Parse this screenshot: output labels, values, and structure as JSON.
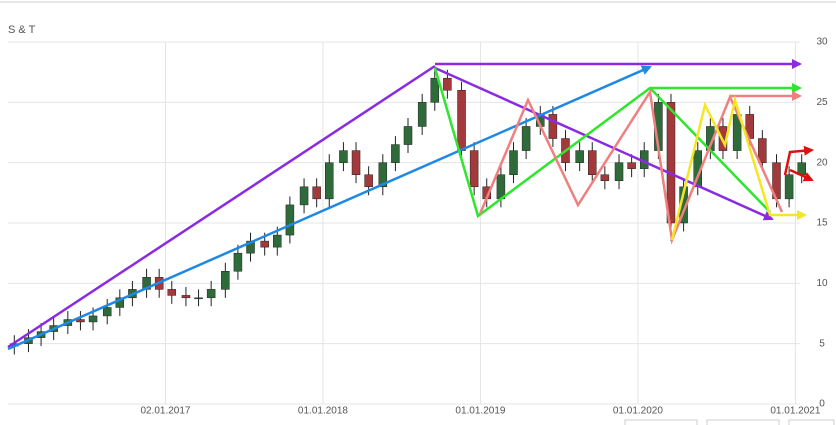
{
  "chart_data": {
    "type": "candlestick",
    "title": "S & T",
    "x": [
      2016.04,
      2016.13,
      2016.21,
      2016.29,
      2016.38,
      2016.46,
      2016.54,
      2016.63,
      2016.71,
      2016.79,
      2016.88,
      2016.96,
      2017.04,
      2017.13,
      2017.21,
      2017.29,
      2017.38,
      2017.46,
      2017.54,
      2017.63,
      2017.71,
      2017.79,
      2017.88,
      2017.96,
      2018.04,
      2018.13,
      2018.21,
      2018.29,
      2018.38,
      2018.46,
      2018.54,
      2018.63,
      2018.71,
      2018.79,
      2018.88,
      2018.96,
      2019.04,
      2019.13,
      2019.21,
      2019.29,
      2019.38,
      2019.46,
      2019.54,
      2019.63,
      2019.71,
      2019.79,
      2019.88,
      2019.96,
      2020.04,
      2020.13,
      2020.21,
      2020.29,
      2020.38,
      2020.46,
      2020.54,
      2020.63,
      2020.71,
      2020.79,
      2020.88,
      2020.96,
      2021.04
    ],
    "open": [
      4.8,
      5,
      5.5,
      6,
      6.5,
      7,
      6.8,
      7.3,
      8,
      8.8,
      9.5,
      10.5,
      9.5,
      9,
      8.8,
      8.8,
      9.5,
      11,
      12.5,
      13.5,
      13,
      14,
      16.5,
      18,
      17,
      20,
      21,
      19,
      18,
      20,
      21.5,
      23,
      25,
      27,
      26,
      21,
      18,
      17,
      19,
      21,
      23,
      24,
      22,
      20,
      21,
      19,
      18.5,
      20,
      19.5,
      21,
      25,
      15,
      18,
      21,
      23,
      21,
      24,
      22,
      20,
      17,
      19
    ],
    "high": [
      5.7,
      6.2,
      6.7,
      7.2,
      7.7,
      7.7,
      8.0,
      8.7,
      9.5,
      10.2,
      11.2,
      11.2,
      10.2,
      9.7,
      9.5,
      10.2,
      11.7,
      13.2,
      14.2,
      14.2,
      14.7,
      17.2,
      18.7,
      18.7,
      20.7,
      21.7,
      21.7,
      19.7,
      20.7,
      22.2,
      23.7,
      25.7,
      27.7,
      27.7,
      26.7,
      21.7,
      18.7,
      19.7,
      21.7,
      23.7,
      24.7,
      24.7,
      22.7,
      21.7,
      21.7,
      19.7,
      20.7,
      20.7,
      21.7,
      25.7,
      25.7,
      18.7,
      21.7,
      23.7,
      23.7,
      24.7,
      24.7,
      22.7,
      20.7,
      19.7,
      20.7
    ],
    "low": [
      4.1,
      4.3,
      4.8,
      5.3,
      5.8,
      6.1,
      6.1,
      6.6,
      7.3,
      8.1,
      8.8,
      8.8,
      8.3,
      8.1,
      8.1,
      8.1,
      8.8,
      10.3,
      11.8,
      12.3,
      12.3,
      13.3,
      15.8,
      16.3,
      16.3,
      19.3,
      18.3,
      17.3,
      17.3,
      19.3,
      20.8,
      22.3,
      24.3,
      25.3,
      20.3,
      17.3,
      16.3,
      16.3,
      18.3,
      20.3,
      22.3,
      21.3,
      19.3,
      19.3,
      18.3,
      17.8,
      17.8,
      18.8,
      18.8,
      20.3,
      13.5,
      14.3,
      17.3,
      20.3,
      20.3,
      20.3,
      21.3,
      19.3,
      16.3,
      16.3,
      18.3
    ],
    "close": [
      5,
      5.5,
      6,
      6.5,
      7,
      6.8,
      7.3,
      8,
      8.8,
      9.5,
      10.5,
      9.5,
      9,
      8.8,
      8.8,
      9.5,
      11,
      12.5,
      13.5,
      13,
      14,
      16.5,
      18,
      17,
      20,
      21,
      19,
      18,
      20,
      21.5,
      23,
      25,
      27,
      26,
      21,
      18,
      17,
      19,
      21,
      23,
      24,
      22,
      20,
      21,
      19,
      18.5,
      20,
      19.5,
      21,
      25,
      15,
      18,
      21,
      23,
      21,
      24,
      22,
      20,
      17,
      19,
      20
    ],
    "up_color": "#2f6b3a",
    "down_color": "#a3393b",
    "xlim": [
      2016.0,
      2021.08
    ],
    "xticks": [
      {
        "value": 2017.0,
        "label": "02.01.2017"
      },
      {
        "value": 2018.0,
        "label": "01.01.2018"
      },
      {
        "value": 2019.0,
        "label": "01.01.2019"
      },
      {
        "value": 2020.0,
        "label": "01.01.2020"
      },
      {
        "value": 2021.0,
        "label": "01.01.2021"
      }
    ],
    "ylim": [
      0,
      30
    ],
    "yticks": [
      0,
      5,
      10,
      15,
      20,
      25,
      30
    ],
    "grid": true
  }
}
